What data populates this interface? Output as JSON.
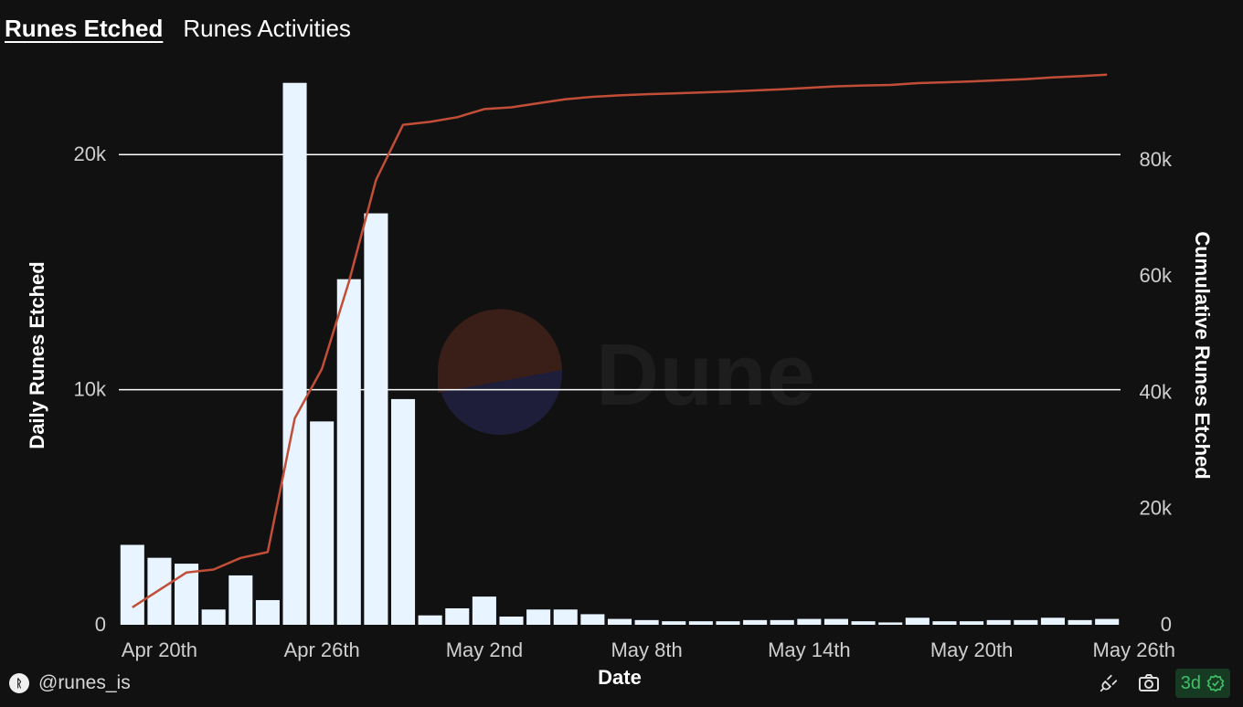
{
  "tabs": [
    {
      "label": "Runes Etched",
      "active": true
    },
    {
      "label": "Runes Activities",
      "active": false
    }
  ],
  "watermark": {
    "text": "Dune"
  },
  "footer": {
    "avatar_glyph": "ᚱ",
    "handle": "@runes_is",
    "badge_text": "3d",
    "icons": [
      "plug-icon",
      "camera-icon",
      "check-circle-icon"
    ]
  },
  "colors": {
    "background": "#111111",
    "bar": "#e8f4ff",
    "line": "#c24e38",
    "grid": "#ffffff",
    "badge_text": "#3fbf67",
    "badge_bg": "#173b22"
  },
  "chart_data": {
    "type": "bar+line",
    "x_start": "Apr 19",
    "x_tick_labels": [
      "Apr 20th",
      "Apr 26th",
      "May 2nd",
      "May 8th",
      "May 14th",
      "May 20th",
      "May 26th"
    ],
    "x_tick_dates": [
      "Apr 20",
      "Apr 26",
      "May 2",
      "May 8",
      "May 14",
      "May 20",
      "May 26"
    ],
    "xlabel": "Date",
    "ylabel_left": "Daily Runes Etched",
    "ylabel_right": "Cumulative Runes Etched",
    "ylim_left": [
      0,
      23000
    ],
    "ylim_right": [
      0,
      93000
    ],
    "left_ticks": [
      {
        "v": 0,
        "label": "0"
      },
      {
        "v": 10000,
        "label": "10k"
      },
      {
        "v": 20000,
        "label": "20k"
      }
    ],
    "right_ticks": [
      {
        "v": 0,
        "label": "0"
      },
      {
        "v": 20000,
        "label": "20k"
      },
      {
        "v": 40000,
        "label": "40k"
      },
      {
        "v": 60000,
        "label": "60k"
      },
      {
        "v": 80000,
        "label": "80k"
      }
    ],
    "grid": true,
    "series": [
      {
        "name": "Daily Runes Etched",
        "type": "bar",
        "values": [
          3400,
          2850,
          2600,
          650,
          2100,
          1050,
          23050,
          8650,
          14700,
          17500,
          9600,
          400,
          700,
          1200,
          350,
          650,
          650,
          450,
          250,
          200,
          150,
          150,
          150,
          200,
          200,
          250,
          250,
          150,
          100,
          300,
          150,
          150,
          200,
          200,
          300,
          200,
          250
        ]
      },
      {
        "name": "Cumulative Runes Etched",
        "type": "line",
        "values": [
          3000,
          6000,
          9000,
          9500,
          11500,
          12500,
          35500,
          44000,
          59000,
          76500,
          86000,
          86500,
          87300,
          88700,
          89000,
          89700,
          90400,
          90800,
          91050,
          91250,
          91400,
          91550,
          91700,
          91900,
          92100,
          92350,
          92600,
          92750,
          92850,
          93150,
          93300,
          93450,
          93650,
          93850,
          94150,
          94350,
          94600
        ]
      }
    ]
  }
}
